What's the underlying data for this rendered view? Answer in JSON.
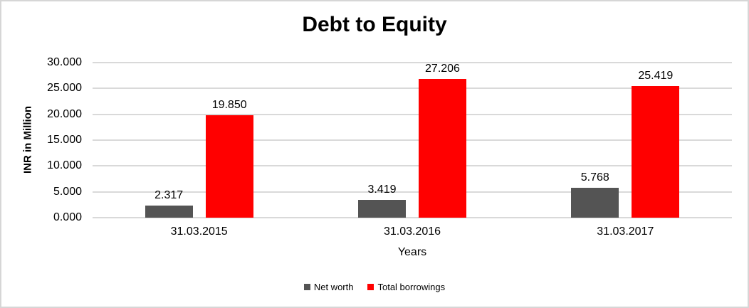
{
  "chart_data": {
    "type": "bar",
    "title": "Debt to Equity",
    "xlabel": "Years",
    "ylabel": "INR in Million",
    "categories": [
      "31.03.2015",
      "31.03.2016",
      "31.03.2017"
    ],
    "series": [
      {
        "name": "Net worth",
        "color": "#545454",
        "values": [
          2.317,
          3.419,
          5.768
        ],
        "value_labels": [
          "2.317",
          "3.419",
          "5.768"
        ]
      },
      {
        "name": "Total borrowings",
        "color": "#ff0000",
        "values": [
          19.85,
          27.206,
          25.419
        ],
        "value_labels": [
          "19.850",
          "27.206",
          "25.419"
        ]
      }
    ],
    "ylim": [
      0,
      30
    ],
    "y_ticks": [
      {
        "value": 0,
        "label": "0.000"
      },
      {
        "value": 5,
        "label": "5.000"
      },
      {
        "value": 10,
        "label": "10.000"
      },
      {
        "value": 15,
        "label": "15.000"
      },
      {
        "value": 20,
        "label": "20.000"
      },
      {
        "value": 25,
        "label": "25.000"
      },
      {
        "value": 30,
        "label": "30.000"
      }
    ],
    "grid": "horizontal",
    "legend_position": "bottom",
    "colors": {
      "grid": "#d9d9d9",
      "text": "#000000",
      "background": "#ffffff",
      "frame_border": "#d6d6d6"
    }
  }
}
